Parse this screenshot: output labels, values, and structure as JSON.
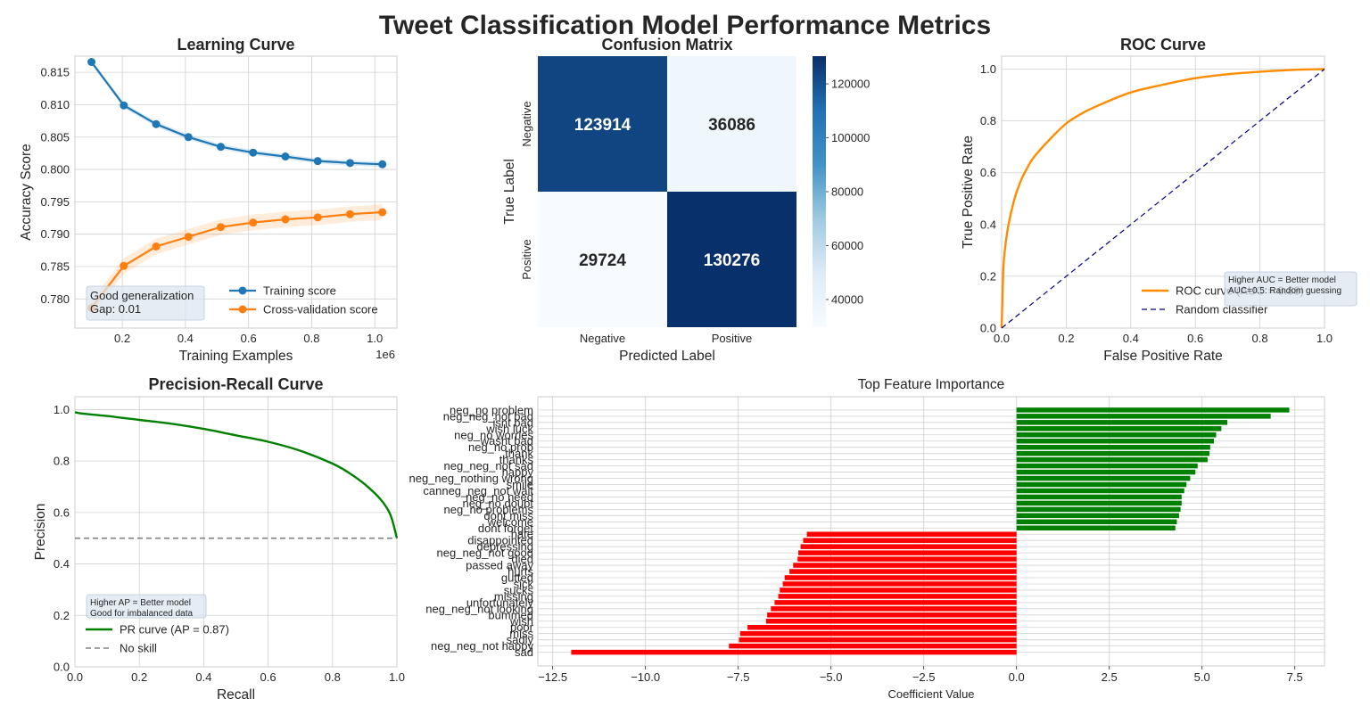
{
  "suptitle": "Tweet Classification Model Performance Metrics",
  "colors": {
    "train": "#1f77b4",
    "cv": "#ff7f0e",
    "roc": "#ff8c00",
    "random": "#000080",
    "pr": "#008000",
    "noskill": "#808080",
    "pos": "#008000",
    "neg": "#ff0000",
    "grid": "#d0d0d0",
    "axis": "#cccccc",
    "cmap_low": "#f7fbff",
    "cmap_high": "#08306b"
  },
  "chart_data": [
    {
      "id": "learning",
      "type": "line",
      "title": "Learning Curve",
      "xlabel": "Training Examples",
      "ylabel": "Accuracy Score",
      "x_offset_label": "1e6",
      "xlim": [
        0.05,
        1.07
      ],
      "ylim": [
        0.7755,
        0.8175
      ],
      "xticks": [
        0.2,
        0.4,
        0.6,
        0.8,
        1.0
      ],
      "xtick_labels": [
        "0.2",
        "0.4",
        "0.6",
        "0.8",
        "1.0"
      ],
      "yticks": [
        0.78,
        0.785,
        0.79,
        0.795,
        0.8,
        0.805,
        0.81,
        0.815
      ],
      "ytick_labels": [
        "0.780",
        "0.785",
        "0.790",
        "0.795",
        "0.800",
        "0.805",
        "0.810",
        "0.815"
      ],
      "x": [
        0.1024,
        0.2048,
        0.3072,
        0.4096,
        0.512,
        0.6144,
        0.7168,
        0.8192,
        0.9216,
        1.024
      ],
      "series": [
        {
          "name": "Training score",
          "color": "#1f77b4",
          "values": [
            0.8166,
            0.8099,
            0.807,
            0.805,
            0.8035,
            0.8026,
            0.802,
            0.8013,
            0.801,
            0.8008
          ],
          "band": 0.0004
        },
        {
          "name": "Cross-validation score",
          "color": "#ff7f0e",
          "values": [
            0.7786,
            0.7851,
            0.7881,
            0.7896,
            0.7911,
            0.7918,
            0.7923,
            0.7926,
            0.7931,
            0.7934
          ],
          "band": 0.0012
        }
      ],
      "legend": "lower right",
      "annotation": [
        "Good generalization",
        "Gap: 0.01"
      ]
    },
    {
      "id": "confusion",
      "type": "heatmap",
      "title": "Confusion Matrix",
      "xlabel": "Predicted Label",
      "ylabel": "True Label",
      "x_categories": [
        "Negative",
        "Positive"
      ],
      "y_categories": [
        "Negative",
        "Positive"
      ],
      "values": [
        [
          123914,
          36086
        ],
        [
          29724,
          130276
        ]
      ],
      "colorbar_ticks": [
        40000,
        60000,
        80000,
        100000,
        120000
      ],
      "colorbar_tick_labels": [
        "40000",
        "60000",
        "80000",
        "100000",
        "120000"
      ],
      "vmin": 29724,
      "vmax": 130276
    },
    {
      "id": "roc",
      "type": "line",
      "title": "ROC Curve",
      "xlabel": "False Positive Rate",
      "ylabel": "True Positive Rate",
      "xlim": [
        0,
        1
      ],
      "ylim": [
        0,
        1.05
      ],
      "xticks": [
        0,
        0.2,
        0.4,
        0.6,
        0.8,
        1.0
      ],
      "xtick_labels": [
        "0.0",
        "0.2",
        "0.4",
        "0.6",
        "0.8",
        "1.0"
      ],
      "yticks": [
        0,
        0.2,
        0.4,
        0.6,
        0.8,
        1.0
      ],
      "ytick_labels": [
        "0.0",
        "0.2",
        "0.4",
        "0.6",
        "0.8",
        "1.0"
      ],
      "series": [
        {
          "name": "ROC curve (AUC = 0.88)",
          "color": "#ff8c00",
          "x": [
            0,
            0.005,
            0.01,
            0.02,
            0.04,
            0.06,
            0.08,
            0.1,
            0.15,
            0.2,
            0.25,
            0.3,
            0.4,
            0.5,
            0.6,
            0.7,
            0.8,
            0.9,
            1.0
          ],
          "y": [
            0,
            0.22,
            0.3,
            0.39,
            0.5,
            0.57,
            0.62,
            0.66,
            0.73,
            0.79,
            0.83,
            0.86,
            0.91,
            0.94,
            0.965,
            0.98,
            0.99,
            0.997,
            1.0
          ]
        },
        {
          "name": "Random classifier",
          "color": "#000080",
          "x": [
            0,
            1
          ],
          "y": [
            0,
            1
          ],
          "dashed": true
        }
      ],
      "legend": "lower right",
      "annotation": [
        "Higher AUC = Better model",
        "AUC=0.5: Random guessing"
      ]
    },
    {
      "id": "pr",
      "type": "line",
      "title": "Precision-Recall Curve",
      "xlabel": "Recall",
      "ylabel": "Precision",
      "xlim": [
        0,
        1
      ],
      "ylim": [
        0,
        1.05
      ],
      "xticks": [
        0,
        0.2,
        0.4,
        0.6,
        0.8,
        1.0
      ],
      "xtick_labels": [
        "0.0",
        "0.2",
        "0.4",
        "0.6",
        "0.8",
        "1.0"
      ],
      "yticks": [
        0,
        0.2,
        0.4,
        0.6,
        0.8,
        1.0
      ],
      "ytick_labels": [
        "0.0",
        "0.2",
        "0.4",
        "0.6",
        "0.8",
        "1.0"
      ],
      "series": [
        {
          "name": "PR curve (AP = 0.87)",
          "color": "#008000",
          "x": [
            0,
            0.02,
            0.1,
            0.2,
            0.3,
            0.4,
            0.5,
            0.6,
            0.7,
            0.8,
            0.85,
            0.9,
            0.95,
            0.98,
            1.0
          ],
          "y": [
            0.99,
            0.985,
            0.975,
            0.96,
            0.945,
            0.925,
            0.9,
            0.875,
            0.84,
            0.79,
            0.755,
            0.71,
            0.65,
            0.59,
            0.5
          ]
        },
        {
          "name": "No skill",
          "color": "#808080",
          "x": [
            0,
            1
          ],
          "y": [
            0.5,
            0.5
          ],
          "dashed": true
        }
      ],
      "legend": "lower left",
      "annotation": [
        "Higher AP = Better model",
        "Good for imbalanced data"
      ]
    },
    {
      "id": "features",
      "type": "bar",
      "orientation": "horizontal",
      "title": "Top Feature Importance",
      "xlabel": "Coefficient Value",
      "xlim": [
        -12.9,
        8.3
      ],
      "xticks": [
        -12.5,
        -10.0,
        -7.5,
        -5.0,
        -2.5,
        0.0,
        2.5,
        5.0,
        7.5
      ],
      "xtick_labels": [
        "−12.5",
        "−10.0",
        "−7.5",
        "−5.0",
        "−2.5",
        "0.0",
        "2.5",
        "5.0",
        "7.5"
      ],
      "categories": [
        "neg_no problem",
        "neg_neg_not bad",
        "isnt bad",
        "wish luck",
        "neg_no worries",
        "wasnt bad",
        "neg_no prob",
        "thank",
        "thanks",
        "neg_neg_not sad",
        "happy",
        "neg_neg_nothing wrong",
        "smile",
        "canneg_neg_not wait",
        "neg_no need",
        "neg_no doubt",
        "neg_no problems",
        "dont miss",
        "welcome",
        "dont forget",
        "hate",
        "disappointed",
        "depressing",
        "neg_neg_not good",
        "died",
        "passed away",
        "hurts",
        "gutted",
        "sick",
        "sucks",
        "missing",
        "unfortunately",
        "neg_neg_not looking",
        "bummed",
        "wish",
        "poor",
        "miss",
        "sadly",
        "neg_neg_not happy",
        "sad"
      ],
      "values": [
        7.35,
        6.85,
        5.68,
        5.52,
        5.38,
        5.32,
        5.22,
        5.2,
        5.15,
        4.88,
        4.82,
        4.68,
        4.58,
        4.52,
        4.45,
        4.45,
        4.42,
        4.38,
        4.32,
        4.28,
        -5.65,
        -5.75,
        -5.82,
        -5.88,
        -5.9,
        -6.02,
        -6.12,
        -6.25,
        -6.3,
        -6.38,
        -6.42,
        -6.52,
        -6.62,
        -6.72,
        -6.75,
        -7.25,
        -7.45,
        -7.48,
        -7.75,
        -12.0
      ]
    }
  ]
}
